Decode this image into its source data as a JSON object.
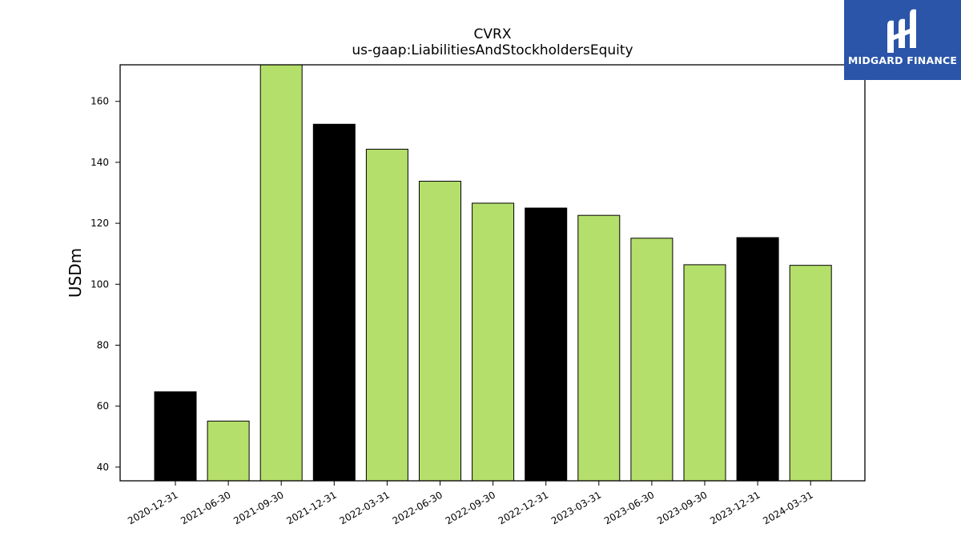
{
  "brand": {
    "name": "MIDGARD FINANCE",
    "icon": "midgard-logo-icon",
    "color": "#2a55a8"
  },
  "chart_data": {
    "type": "bar",
    "title": "CVRX",
    "subtitle": "us-gaap:LiabilitiesAndStockholdersEquity",
    "xlabel": "",
    "ylabel": "USDm",
    "categories": [
      "2020-12-31",
      "2021-06-30",
      "2021-09-30",
      "2021-12-31",
      "2022-03-31",
      "2022-06-30",
      "2022-09-30",
      "2022-12-31",
      "2023-03-31",
      "2023-06-30",
      "2023-09-30",
      "2023-12-31",
      "2024-03-31"
    ],
    "values": [
      64.7,
      55.1,
      172.0,
      152.5,
      144.3,
      133.8,
      126.6,
      125.0,
      122.6,
      115.1,
      106.4,
      115.3,
      106.2
    ],
    "bar_colors": [
      "#000000",
      "#b5df6b",
      "#b5df6b",
      "#000000",
      "#b5df6b",
      "#b5df6b",
      "#b5df6b",
      "#000000",
      "#b5df6b",
      "#b5df6b",
      "#b5df6b",
      "#000000",
      "#b5df6b"
    ],
    "ylim": [
      35.5,
      172
    ],
    "yticks": [
      40,
      60,
      80,
      100,
      120,
      140,
      160
    ],
    "grid": false,
    "legend": "none"
  }
}
